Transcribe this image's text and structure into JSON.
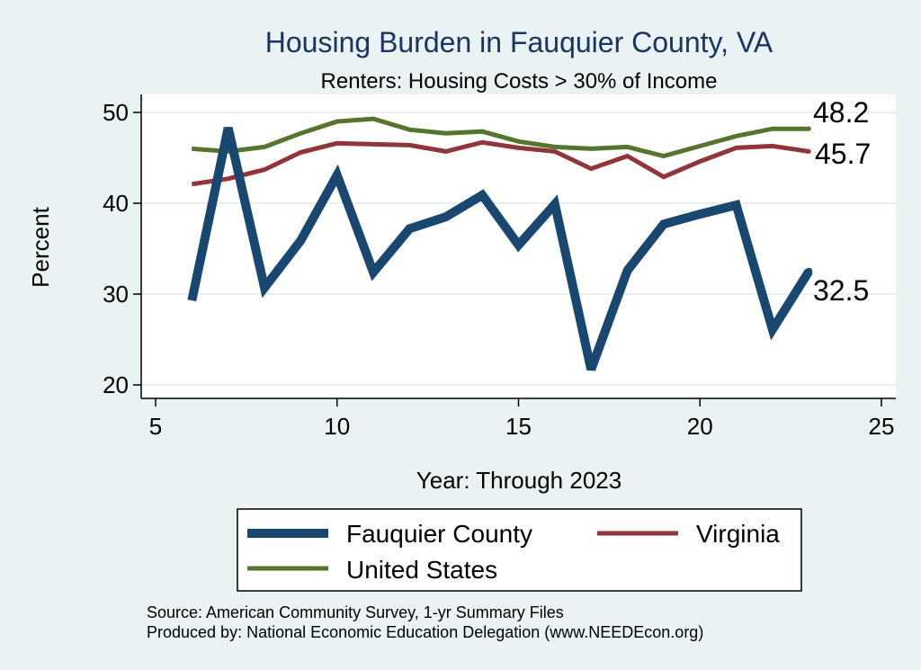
{
  "chart_data": {
    "type": "line",
    "title": "Housing Burden in Fauquier County, VA",
    "subtitle": "Renters: Housing Costs > 30% of Income",
    "xlabel": "Year: Through 2023",
    "ylabel": "Percent",
    "xlim": [
      5,
      25
    ],
    "ylim": [
      20,
      50
    ],
    "x_ticks": [
      "5",
      "10",
      "15",
      "20",
      "25"
    ],
    "y_ticks": [
      "20",
      "30",
      "40",
      "50"
    ],
    "grid": true,
    "legend_position": "bottom",
    "series": [
      {
        "name": "Fauquier County",
        "color": "#1a476f",
        "x": [
          6,
          7,
          8,
          9,
          10,
          11,
          12,
          13,
          14,
          15,
          16,
          17,
          18,
          19,
          20,
          21,
          22,
          23
        ],
        "y": [
          29.3,
          48.3,
          30.7,
          35.9,
          43.1,
          32.4,
          37.2,
          38.5,
          40.9,
          35.4,
          39.9,
          21.7,
          32.6,
          37.7,
          38.8,
          39.8,
          26.1,
          32.5
        ],
        "end_label": "32.5"
      },
      {
        "name": "Virginia",
        "color": "#90353b",
        "x": [
          6,
          7,
          8,
          9,
          10,
          11,
          12,
          13,
          14,
          15,
          16,
          17,
          18,
          19,
          20,
          21,
          22,
          23
        ],
        "y": [
          42.1,
          42.7,
          43.7,
          45.6,
          46.6,
          46.5,
          46.4,
          45.7,
          46.7,
          46.1,
          45.7,
          43.8,
          45.2,
          42.9,
          44.6,
          46.1,
          46.3,
          45.7
        ],
        "end_label": "45.7"
      },
      {
        "name": "United States",
        "color": "#55752f",
        "x": [
          6,
          7,
          8,
          9,
          10,
          11,
          12,
          13,
          14,
          15,
          16,
          17,
          18,
          19,
          20,
          21,
          22,
          23
        ],
        "y": [
          46.0,
          45.7,
          46.2,
          47.7,
          49.0,
          49.3,
          48.1,
          47.7,
          47.9,
          46.8,
          46.2,
          46.0,
          46.2,
          45.2,
          46.3,
          47.4,
          48.2,
          48.2
        ],
        "end_label": "48.2"
      }
    ]
  },
  "notes": {
    "source": "Source: American Community Survey, 1-yr Summary Files",
    "produced": "Produced by: National Economic Education Delegation (www.NEEDEcon.org)"
  }
}
